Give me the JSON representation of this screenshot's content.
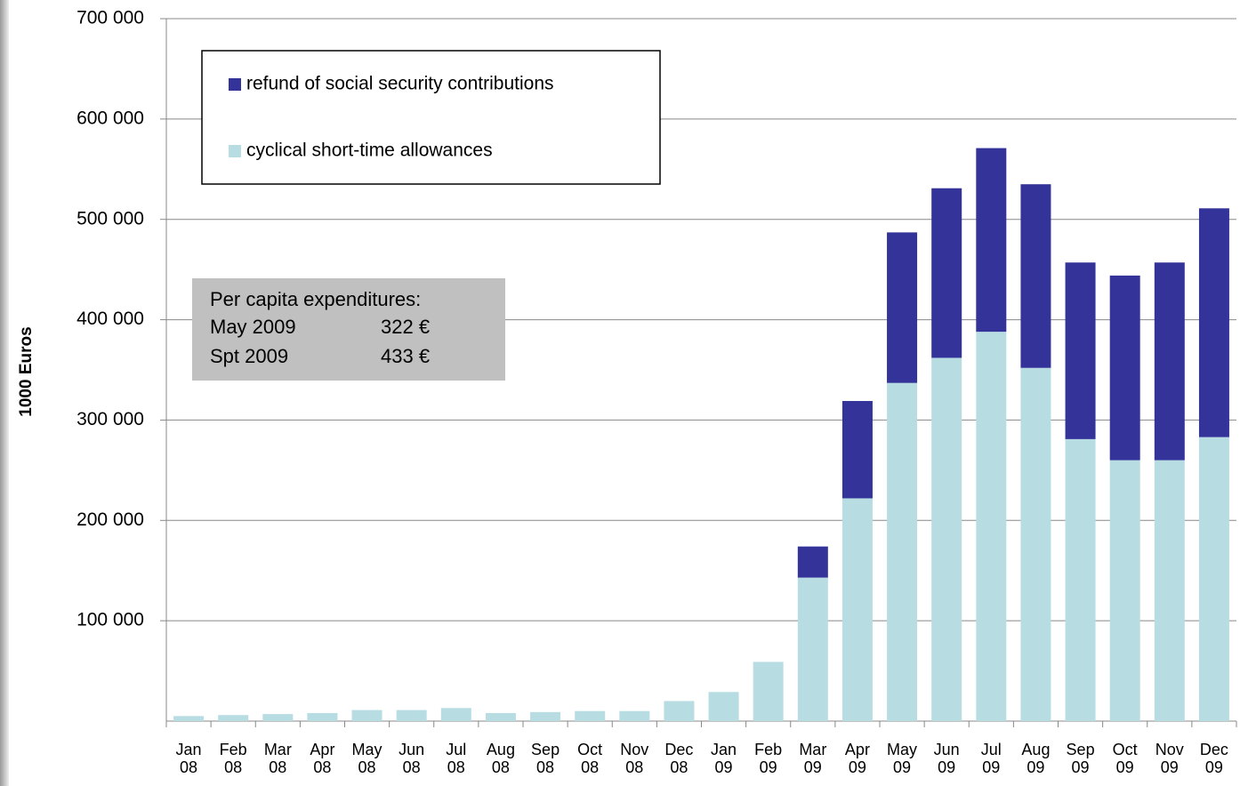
{
  "chart_data": {
    "type": "stacked_bar",
    "y_label": "1000 Euros",
    "categories": [
      "Jan 08",
      "Feb 08",
      "Mar 08",
      "Apr 08",
      "May 08",
      "Jun 08",
      "Jul 08",
      "Aug 08",
      "Sep 08",
      "Oct 08",
      "Nov 08",
      "Dec 08",
      "Jan 09",
      "Feb 09",
      "Mar 09",
      "Apr 09",
      "May 09",
      "Jun 09",
      "Jul 09",
      "Aug 09",
      "Sep 09",
      "Oct 09",
      "Nov 09",
      "Dec 09"
    ],
    "series": [
      {
        "name": "cyclical short-time allowances",
        "color": "#b7dde3",
        "values": [
          5000,
          6000,
          7000,
          8000,
          11000,
          11000,
          13000,
          8000,
          9000,
          10000,
          10000,
          20000,
          29000,
          59000,
          143000,
          222000,
          337000,
          362000,
          388000,
          352000,
          281000,
          260000,
          260000,
          283000
        ]
      },
      {
        "name": "refund of social security contributions",
        "color": "#333399",
        "values": [
          0,
          0,
          0,
          0,
          0,
          0,
          0,
          0,
          0,
          0,
          0,
          0,
          0,
          0,
          31000,
          97000,
          150000,
          169000,
          183000,
          183000,
          176000,
          184000,
          197000,
          228000
        ]
      }
    ],
    "ylim": [
      0,
      700000
    ],
    "yticks": [
      {
        "value": 100000,
        "label": "100 000"
      },
      {
        "value": 200000,
        "label": "200 000"
      },
      {
        "value": 300000,
        "label": "300 000"
      },
      {
        "value": 400000,
        "label": "400 000"
      },
      {
        "value": 500000,
        "label": "500 000"
      },
      {
        "value": 600000,
        "label": "600 000"
      },
      {
        "value": 700000,
        "label": "700 000"
      }
    ],
    "grid": true,
    "annotation": {
      "title": "Per capita expenditures:",
      "rows": [
        [
          "May 2009",
          "322 €"
        ],
        [
          "Spt 2009",
          "433 €"
        ]
      ]
    }
  }
}
